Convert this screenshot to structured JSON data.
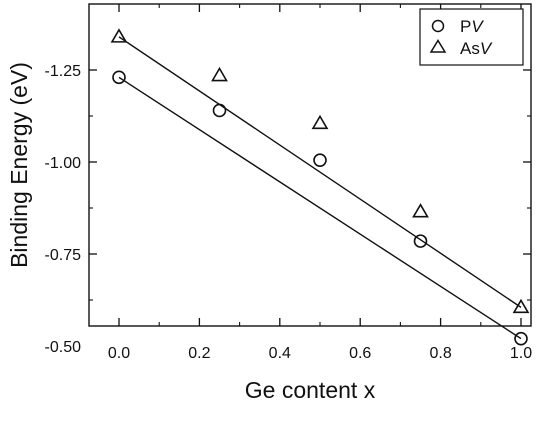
{
  "chart_data": {
    "type": "scatter",
    "title": "",
    "xlabel": "Ge content x",
    "ylabel": "Binding Energy (eV)",
    "xlim": [
      -0.05,
      1.05
    ],
    "ylim": [
      -0.5,
      -1.35
    ],
    "y_axis_inverted": true,
    "x_ticks": [
      0.0,
      0.2,
      0.4,
      0.6,
      0.8,
      1.0
    ],
    "x_tick_labels": [
      "0.0",
      "0.2",
      "0.4",
      "0.6",
      "0.8",
      "1.0"
    ],
    "y_ticks": [
      -1.25,
      -1.0,
      -0.75,
      -0.5
    ],
    "y_tick_labels": [
      "-1.25",
      "-1.00",
      "-0.75",
      "-0.50"
    ],
    "grid": false,
    "legend_position": "top-right",
    "legend_frame": true,
    "series": [
      {
        "name": "PV",
        "marker": "circle",
        "color": "#111111",
        "x": [
          0.0,
          0.25,
          0.5,
          0.75,
          1.0
        ],
        "y": [
          -1.23,
          -1.14,
          -1.005,
          -0.785,
          -0.52
        ],
        "fit_line": {
          "x": [
            0.0,
            1.0
          ],
          "y": [
            -1.23,
            -0.52
          ]
        }
      },
      {
        "name": "AsV",
        "marker": "triangle",
        "color": "#111111",
        "x": [
          0.0,
          0.25,
          0.5,
          0.75,
          1.0
        ],
        "y": [
          -1.34,
          -1.235,
          -1.105,
          -0.865,
          -0.605
        ],
        "fit_line": {
          "x": [
            0.0,
            1.0
          ],
          "y": [
            -1.34,
            -0.605
          ]
        }
      }
    ],
    "legend": [
      {
        "marker": "circle",
        "label_main": "P",
        "label_italic": "V"
      },
      {
        "marker": "triangle",
        "label_main": "As",
        "label_italic": "V"
      }
    ]
  }
}
